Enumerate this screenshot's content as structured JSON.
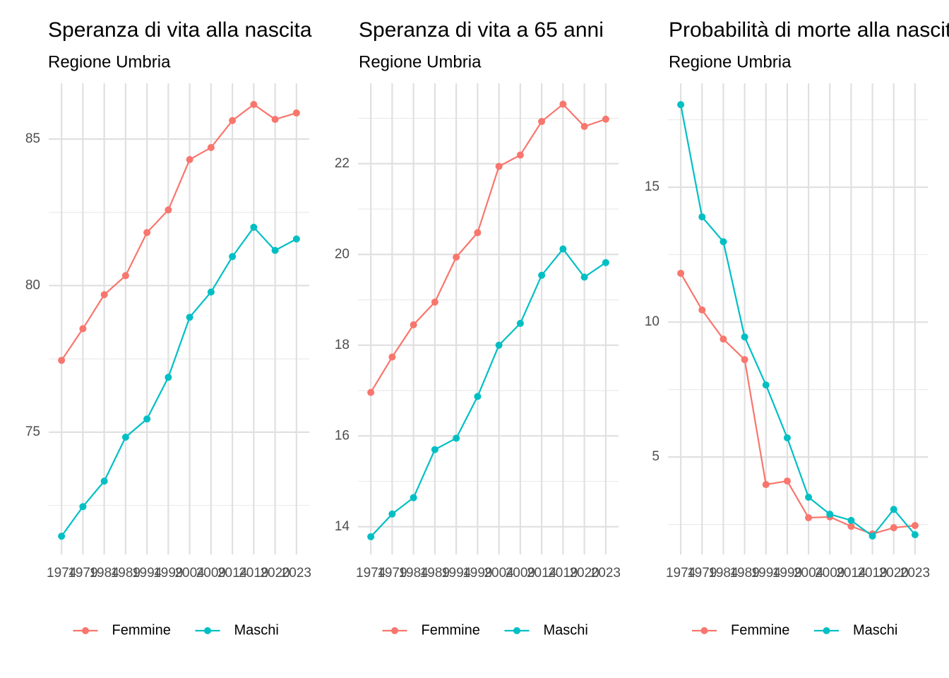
{
  "chart_data": [
    {
      "type": "line",
      "title": "Speranza di vita alla nascita",
      "subtitle": "Regione Umbria",
      "categories": [
        "1974",
        "1979",
        "1984",
        "1989",
        "1994",
        "1999",
        "2004",
        "2009",
        "2014",
        "2019",
        "2020",
        "2023"
      ],
      "series": [
        {
          "name": "Femmine",
          "color": "#F8766D",
          "values": [
            77.45,
            78.53,
            79.69,
            80.34,
            81.81,
            82.58,
            84.3,
            84.71,
            85.63,
            86.18,
            85.67,
            85.89
          ]
        },
        {
          "name": "Maschi",
          "color": "#00BFC4",
          "values": [
            71.45,
            72.46,
            73.33,
            74.83,
            75.45,
            76.87,
            78.92,
            79.78,
            80.99,
            81.99,
            81.2,
            81.59
          ]
        }
      ],
      "ylim": [
        70.83,
        86.9
      ],
      "yticks": [
        75,
        80,
        85
      ],
      "grid": true,
      "legend": "bottom"
    },
    {
      "type": "line",
      "title": "Speranza di vita a 65 anni",
      "subtitle": "Regione Umbria",
      "categories": [
        "1974",
        "1979",
        "1984",
        "1989",
        "1994",
        "1999",
        "2004",
        "2009",
        "2014",
        "2019",
        "2020",
        "2023"
      ],
      "series": [
        {
          "name": "Femmine",
          "color": "#F8766D",
          "values": [
            16.96,
            17.74,
            18.45,
            18.95,
            19.94,
            20.48,
            21.94,
            22.19,
            22.93,
            23.31,
            22.82,
            22.98
          ]
        },
        {
          "name": "Maschi",
          "color": "#00BFC4",
          "values": [
            13.78,
            14.28,
            14.64,
            15.7,
            15.95,
            16.87,
            18.0,
            18.48,
            19.54,
            20.12,
            19.5,
            19.82
          ]
        }
      ],
      "ylim": [
        13.39,
        23.77
      ],
      "yticks": [
        14,
        16,
        18,
        20,
        22
      ],
      "grid": true,
      "legend": "bottom"
    },
    {
      "type": "line",
      "title": "Probabilità di morte alla nascita",
      "subtitle": "Regione Umbria",
      "categories": [
        "1974",
        "1979",
        "1984",
        "1989",
        "1994",
        "1999",
        "2004",
        "2009",
        "2014",
        "2019",
        "2020",
        "2023"
      ],
      "series": [
        {
          "name": "Femmine",
          "color": "#F8766D",
          "values": [
            11.81,
            10.45,
            9.37,
            8.61,
            3.98,
            4.11,
            2.75,
            2.78,
            2.43,
            2.15,
            2.38,
            2.46
          ]
        },
        {
          "name": "Maschi",
          "color": "#00BFC4",
          "values": [
            18.06,
            13.9,
            12.98,
            9.45,
            7.67,
            5.71,
            3.51,
            2.88,
            2.65,
            2.07,
            3.06,
            2.12
          ]
        }
      ],
      "ylim": [
        1.39,
        18.85
      ],
      "yticks": [
        5,
        10,
        15
      ],
      "grid": true,
      "legend": "bottom"
    }
  ]
}
